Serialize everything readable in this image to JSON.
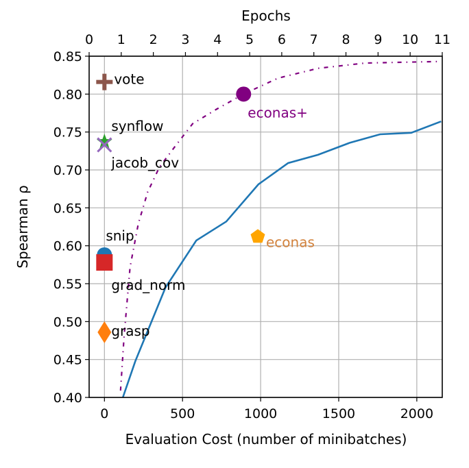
{
  "chart_data": {
    "type": "line",
    "xlabel": "Evaluation Cost (number of minibatches)",
    "ylabel": "Spearman ρ",
    "top_xlabel": "Epochs",
    "xlim": [
      -98,
      2163
    ],
    "ylim": [
      0.4,
      0.85
    ],
    "top_xlim": [
      0,
      11
    ],
    "grid": true,
    "xticks": [
      0,
      500,
      1000,
      1500,
      2000
    ],
    "yticks": [
      "0.40",
      "0.45",
      "0.50",
      "0.55",
      "0.60",
      "0.65",
      "0.70",
      "0.75",
      "0.80",
      "0.85"
    ],
    "top_xticks": [
      0,
      1,
      2,
      3,
      4,
      5,
      6,
      7,
      8,
      9,
      10,
      11
    ],
    "series": [
      {
        "style": "solid",
        "color": "#1f77b4",
        "x": [
          118,
          198,
          391,
          588,
          780,
          986,
          1176,
          1368,
          1573,
          1765,
          1964,
          2156
        ],
        "y": [
          0.4,
          0.448,
          0.545,
          0.607,
          0.632,
          0.681,
          0.709,
          0.72,
          0.736,
          0.747,
          0.749,
          0.764
        ]
      },
      {
        "style": "dash-dot",
        "color": "#800080",
        "x": [
          103,
          126,
          164,
          217,
          277,
          353,
          452,
          565,
          717,
          891,
          1111,
          1368,
          1671,
          2156
        ],
        "y": [
          0.409,
          0.481,
          0.572,
          0.629,
          0.671,
          0.704,
          0.731,
          0.761,
          0.78,
          0.8,
          0.821,
          0.834,
          0.841,
          0.843
        ]
      }
    ],
    "points": [
      {
        "label": "vote",
        "x": 0,
        "y": 0.816,
        "marker": "plus",
        "color": "#8c564b",
        "label_color": "#000000"
      },
      {
        "label": "synflow",
        "x": 0,
        "y": 0.737,
        "marker": "star",
        "color": "#2ca02c",
        "label_color": "#000000"
      },
      {
        "label": "jacob_cov",
        "x": 0,
        "y": 0.733,
        "marker": "x",
        "color": "#9467bd",
        "label_color": "#000000"
      },
      {
        "label": "snip",
        "x": 0,
        "y": 0.588,
        "marker": "circle",
        "color": "#1f77b4",
        "label_color": "#000000"
      },
      {
        "label": "grad_norm",
        "x": 0,
        "y": 0.578,
        "marker": "square",
        "color": "#d62728",
        "label_color": "#000000"
      },
      {
        "label": "grasp",
        "x": 0,
        "y": 0.486,
        "marker": "diamond",
        "color": "#ff7f0e",
        "label_color": "#000000"
      },
      {
        "label": "econas",
        "x": 982,
        "y": 0.612,
        "marker": "pentagon",
        "color": "#ffa500",
        "label_color": "#d2823c"
      },
      {
        "label": "econas+",
        "x": 891,
        "y": 0.8,
        "marker": "circle",
        "color": "#800080",
        "label_color": "#800080"
      }
    ]
  }
}
